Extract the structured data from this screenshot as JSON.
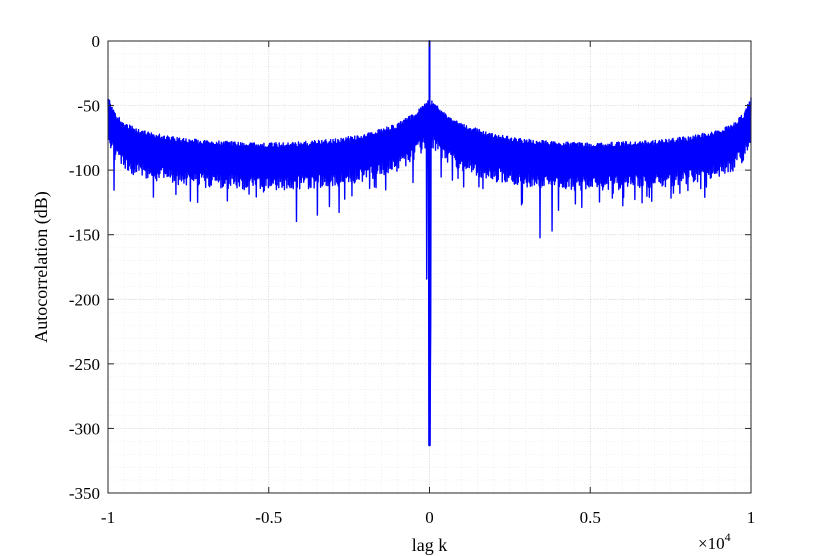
{
  "chart_data": {
    "type": "line",
    "title": "",
    "xlabel": "lag k",
    "ylabel": "Autocorrelation (dB)",
    "x_exponent_label": "×10",
    "x_exponent_power": "4",
    "xlim": [
      -1,
      1
    ],
    "ylim": [
      -350,
      0
    ],
    "xticks": [
      -1,
      -0.5,
      0,
      0.5,
      1
    ],
    "xtick_labels": [
      "-1",
      "-0.5",
      "0",
      "0.5",
      "1"
    ],
    "yticks": [
      0,
      -50,
      -100,
      -150,
      -200,
      -250,
      -300,
      -350
    ],
    "ytick_labels": [
      "0",
      "-50",
      "-100",
      "-150",
      "-200",
      "-250",
      "-300",
      "-350"
    ],
    "grid": true,
    "minor_grid": true,
    "series": [
      {
        "color": "#0000ff",
        "envelope_upper": {
          "x": [
            -1,
            -0.98,
            -0.95,
            -0.9,
            -0.8,
            -0.7,
            -0.6,
            -0.5,
            -0.4,
            -0.3,
            -0.2,
            -0.1,
            -0.05,
            -0.02,
            0,
            0.02,
            0.05,
            0.1,
            0.2,
            0.3,
            0.4,
            0.5,
            0.6,
            0.7,
            0.8,
            0.9,
            0.95,
            0.98,
            1
          ],
          "y": [
            -43,
            -55,
            -63,
            -69,
            -74,
            -77,
            -78,
            -79,
            -78,
            -76,
            -72,
            -64,
            -56,
            -49,
            -45,
            -49,
            -56,
            -64,
            -72,
            -76,
            -78,
            -79,
            -78,
            -77,
            -74,
            -69,
            -63,
            -55,
            -43
          ]
        },
        "envelope_lower": {
          "x": [
            -1,
            -0.9,
            -0.8,
            -0.6,
            -0.5,
            -0.36,
            -0.2,
            -0.1,
            -0.02,
            0,
            0.02,
            0.1,
            0.2,
            0.35,
            0.5,
            0.6,
            0.8,
            0.9,
            1
          ],
          "y": [
            -115,
            -120,
            -125,
            -128,
            -125,
            -156,
            -122,
            -118,
            -105,
            -313,
            -105,
            -118,
            -122,
            -156,
            -125,
            -128,
            -125,
            -120,
            -115
          ]
        },
        "peak": {
          "x": 0,
          "y": 0
        }
      }
    ]
  }
}
